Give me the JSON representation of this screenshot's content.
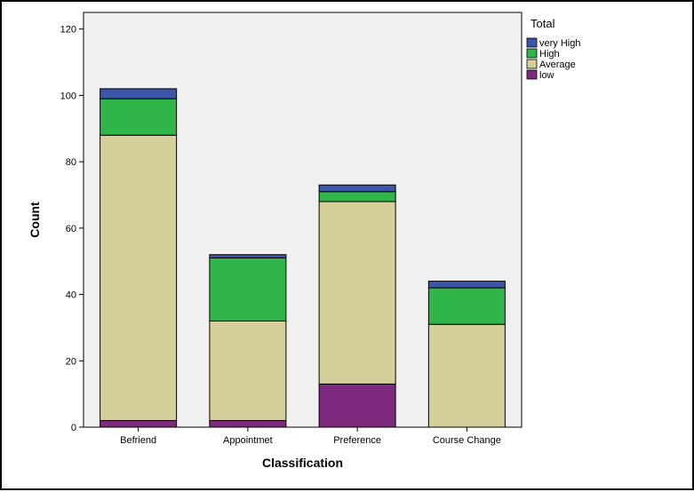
{
  "chart_data": {
    "type": "bar",
    "stacked": true,
    "categories": [
      "Befriend",
      "Appointmet",
      "Preference",
      "Course Change"
    ],
    "series": [
      {
        "name": "low",
        "values": [
          2,
          2,
          13,
          0
        ]
      },
      {
        "name": "Average",
        "values": [
          86,
          30,
          55,
          31
        ]
      },
      {
        "name": "High",
        "values": [
          11,
          19,
          3,
          11
        ]
      },
      {
        "name": "very High",
        "values": [
          3,
          1,
          2,
          2
        ]
      }
    ],
    "colors": {
      "low": "#7e2a7e",
      "Average": "#d6cf9a",
      "High": "#2fb548",
      "very High": "#3b55a8"
    },
    "xlabel": "Classification",
    "ylabel": "Count",
    "ylim": [
      0,
      125
    ],
    "yticks": [
      0,
      20,
      40,
      60,
      80,
      100,
      120
    ],
    "legend": {
      "title": "Total",
      "placement": "top-right",
      "order": [
        "very High",
        "High",
        "Average",
        "low"
      ]
    },
    "plot_background": "#f0f0f0",
    "grid": false
  }
}
